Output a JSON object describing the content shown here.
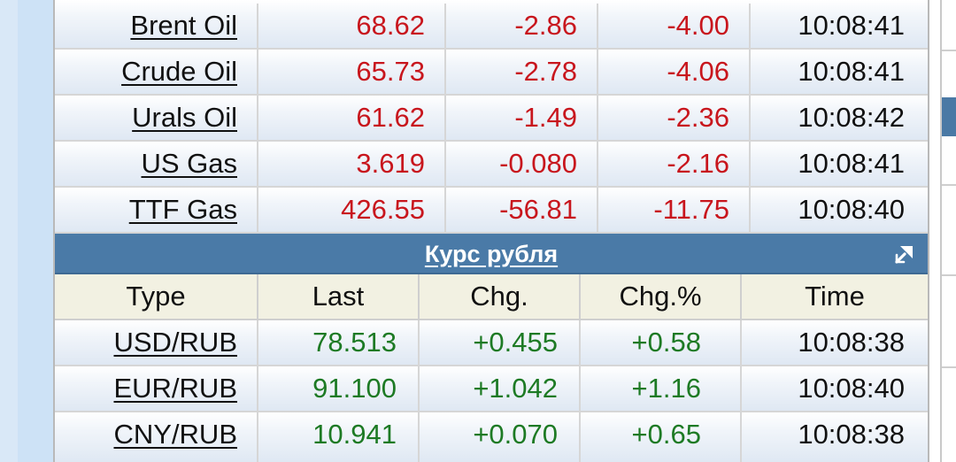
{
  "commodities": [
    {
      "name": "Brent Oil",
      "last": "68.62",
      "chg": "-2.86",
      "chg_pct": "-4.00",
      "time": "10:08:41"
    },
    {
      "name": "Crude Oil",
      "last": "65.73",
      "chg": "-2.78",
      "chg_pct": "-4.06",
      "time": "10:08:41"
    },
    {
      "name": "Urals Oil",
      "last": "61.62",
      "chg": "-1.49",
      "chg_pct": "-2.36",
      "time": "10:08:42"
    },
    {
      "name": "US Gas",
      "last": "3.619",
      "chg": "-0.080",
      "chg_pct": "-2.16",
      "time": "10:08:41"
    },
    {
      "name": "TTF Gas",
      "last": "426.55",
      "chg": "-56.81",
      "chg_pct": "-11.75",
      "time": "10:08:40"
    }
  ],
  "ruble_section": {
    "title": "Курс рубля",
    "expand_icon": "expand-arrow-icon",
    "headers": {
      "type": "Type",
      "last": "Last",
      "chg": "Chg.",
      "chg_pct": "Chg.%",
      "time": "Time"
    },
    "rows": [
      {
        "name": "USD/RUB",
        "last": "78.513",
        "chg": "+0.455",
        "chg_pct": "+0.58",
        "time": "10:08:38"
      },
      {
        "name": "EUR/RUB",
        "last": "91.100",
        "chg": "+1.042",
        "chg_pct": "+1.16",
        "time": "10:08:40"
      },
      {
        "name": "CNY/RUB",
        "last": "10.941",
        "chg": "+0.070",
        "chg_pct": "+0.65",
        "time": "10:08:38"
      }
    ]
  },
  "colors": {
    "negative": "#c8161d",
    "positive": "#1d7a24",
    "section_bar": "#4a7aa7",
    "header_bg": "#f2f1e2"
  }
}
